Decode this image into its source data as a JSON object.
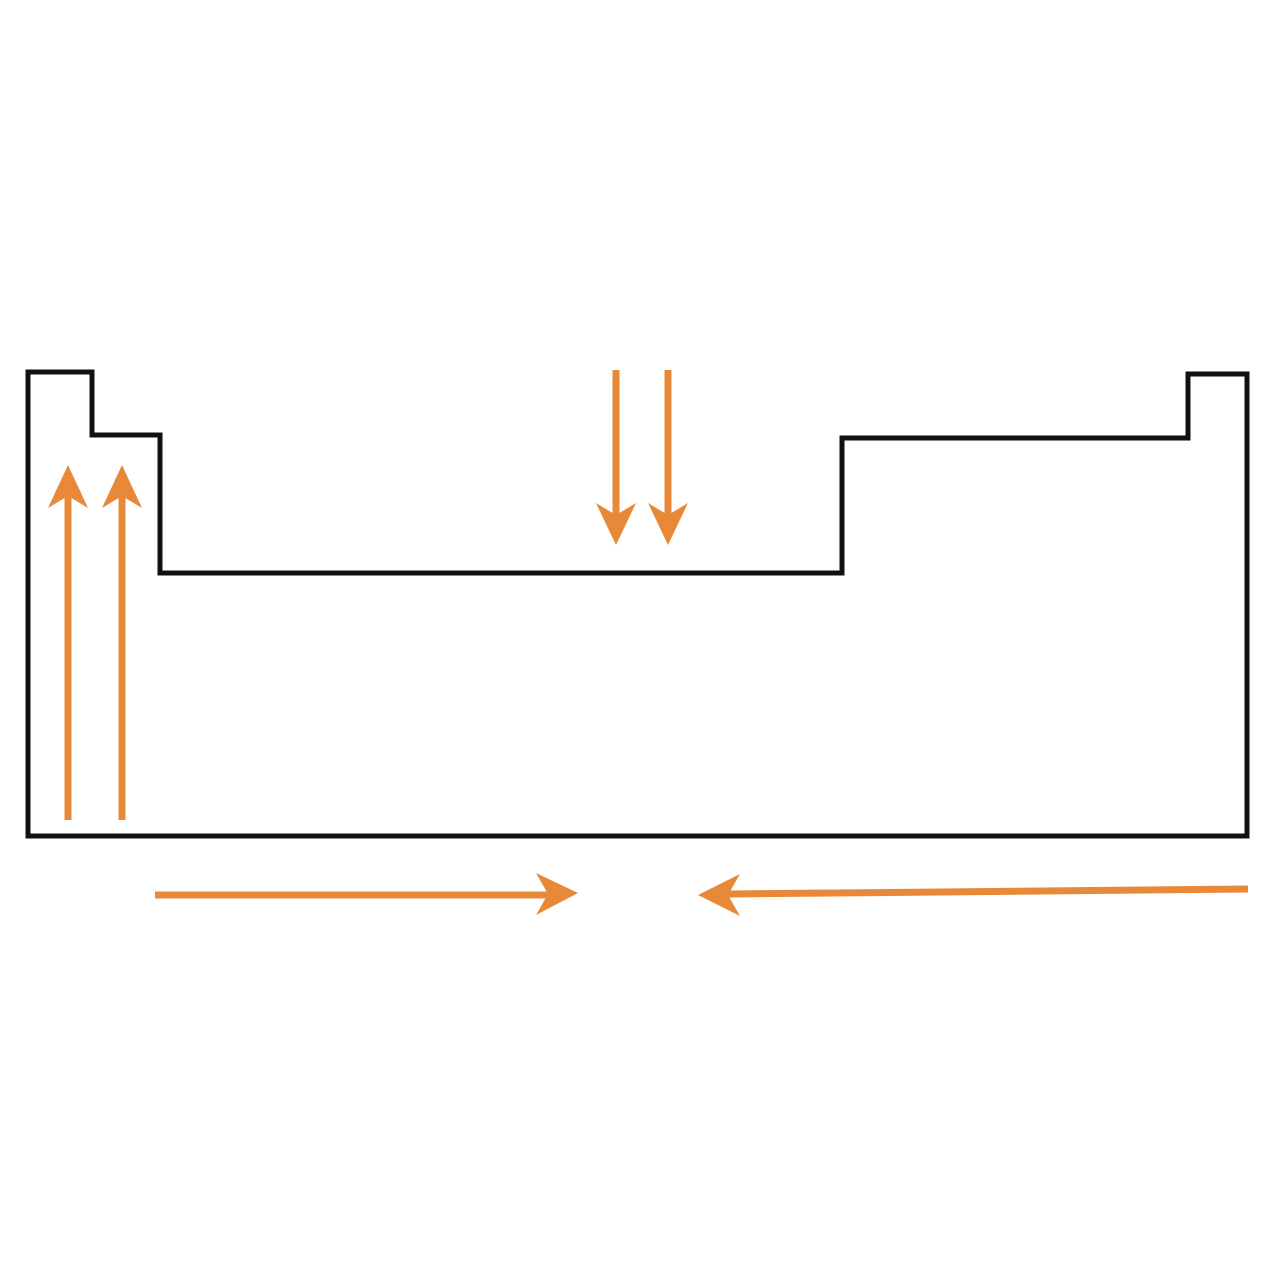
{
  "diagram": {
    "outline_color": "#111111",
    "arrow_color": "#E8893A",
    "background": "#ffffff",
    "arrows": [
      {
        "id": "group1-up",
        "direction": "up",
        "icon": "arrow-up-icon"
      },
      {
        "id": "group2-up",
        "direction": "up",
        "icon": "arrow-up-icon"
      },
      {
        "id": "dblock-down-left",
        "direction": "down",
        "icon": "arrow-down-icon"
      },
      {
        "id": "dblock-down-right",
        "direction": "down",
        "icon": "arrow-down-icon"
      },
      {
        "id": "period-right",
        "direction": "right",
        "icon": "arrow-right-icon"
      },
      {
        "id": "period-left",
        "direction": "left",
        "icon": "arrow-left-icon"
      }
    ]
  }
}
